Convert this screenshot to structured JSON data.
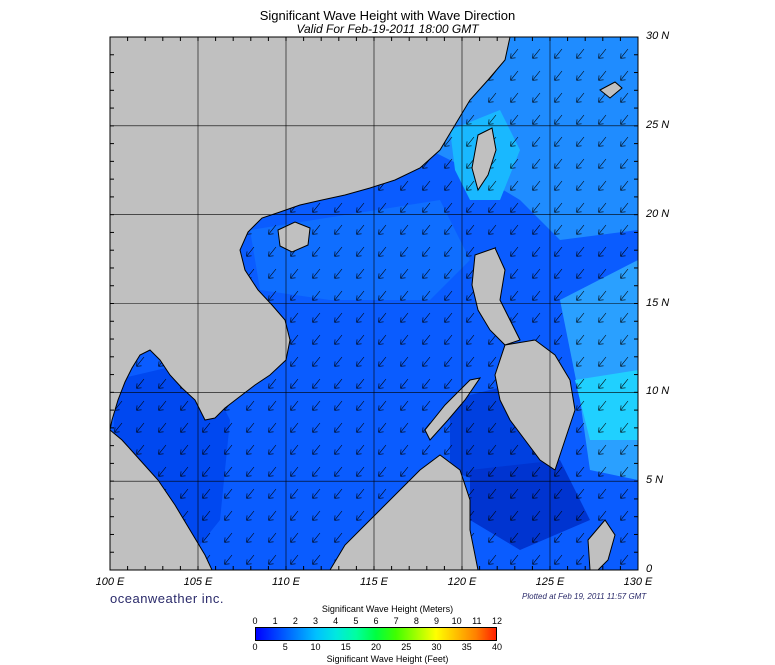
{
  "header": {
    "title": "Significant Wave Height with Wave Direction",
    "subtitle": "Valid For Feb-19-2011 18:00 GMT"
  },
  "map": {
    "lat_labels": [
      "30 N",
      "25 N",
      "20 N",
      "15 N",
      "10 N",
      "5 N",
      "0"
    ],
    "lon_labels": [
      "100 E",
      "105 E",
      "110 E",
      "115 E",
      "120 E",
      "125 E",
      "130 E"
    ],
    "lat_range": [
      0,
      30
    ],
    "lon_range": [
      100,
      130
    ],
    "grid_step_deg": 5,
    "land_color": "#c0c0c0",
    "ocean_colors": [
      "#0050ff",
      "#0a78ff",
      "#19a0ff",
      "#00c8ff",
      "#0000cc",
      "#000060"
    ],
    "wave_direction": "southwest",
    "arrow_color": "#000000"
  },
  "footer": {
    "brand": "oceanweather inc.",
    "plotted": "Plotted at Feb 19, 2011 11:57 GMT"
  },
  "legend": {
    "meters_title": "Significant Wave Height (Meters)",
    "feet_title": "Significant Wave Height (Feet)",
    "meters_ticks": [
      "0",
      "1",
      "2",
      "3",
      "4",
      "5",
      "6",
      "7",
      "8",
      "9",
      "10",
      "11",
      "12"
    ],
    "feet_ticks": [
      "0",
      "5",
      "10",
      "15",
      "20",
      "25",
      "30",
      "35",
      "40"
    ],
    "colors": [
      "#0000ff",
      "#0040ff",
      "#0080ff",
      "#00c0ff",
      "#00e8e0",
      "#00ffa0",
      "#00ff40",
      "#40ff00",
      "#a0ff00",
      "#ffff00",
      "#ffc000",
      "#ff8000",
      "#ff2000"
    ]
  }
}
